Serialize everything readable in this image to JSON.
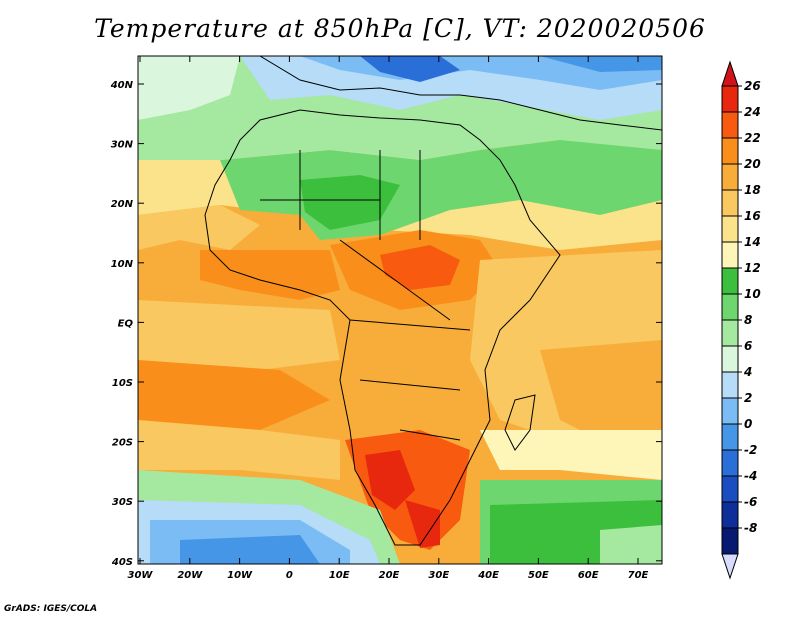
{
  "title": "Temperature at 850hPa [C], VT: 2020020506",
  "credit": "GrADS: IGES/COLA",
  "map": {
    "lon_labels": [
      "30W",
      "20W",
      "10W",
      "0",
      "10E",
      "20E",
      "30E",
      "40E",
      "50E",
      "60E",
      "70E"
    ],
    "lat_labels": [
      "40N",
      "30N",
      "20N",
      "10N",
      "EQ",
      "10S",
      "20S",
      "30S",
      "40S"
    ],
    "lon_range": [
      -30,
      75
    ],
    "lat_range": [
      -40,
      45
    ]
  },
  "colorbar": {
    "labels": [
      "26",
      "24",
      "22",
      "20",
      "18",
      "16",
      "14",
      "12",
      "10",
      "8",
      "6",
      "4",
      "2",
      "0",
      "-2",
      "-4",
      "-6",
      "-8"
    ],
    "colors": [
      "#e8280e",
      "#f85a10",
      "#f98f1a",
      "#f8ad3a",
      "#f9c860",
      "#fbe38c",
      "#fdf6b8",
      "#3cbf3c",
      "#6ed66e",
      "#a5e8a0",
      "#daf6dc",
      "#b6dcf8",
      "#7cbcf4",
      "#4696e8",
      "#2a6ed8",
      "#1a4ec0",
      "#0e2e9a",
      "#061a72"
    ],
    "top_arrow": "#d0141a",
    "bottom_arrow": "#d8dcff"
  }
}
